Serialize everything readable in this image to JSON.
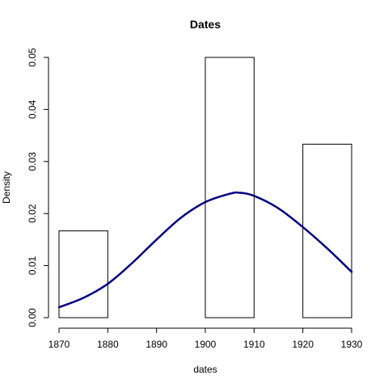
{
  "chart_data": {
    "type": "bar",
    "title": "Dates",
    "xlabel": "dates",
    "ylabel": "Density",
    "xlim": [
      1870,
      1930
    ],
    "ylim": [
      0,
      0.05
    ],
    "x_ticks": [
      "1870",
      "1880",
      "1890",
      "1900",
      "1910",
      "1920",
      "1930"
    ],
    "y_ticks": [
      "0.00",
      "0.01",
      "0.02",
      "0.03",
      "0.04",
      "0.05"
    ],
    "bins": [
      {
        "from": 1870,
        "to": 1880,
        "density": 0.01667
      },
      {
        "from": 1880,
        "to": 1890,
        "density": 0
      },
      {
        "from": 1890,
        "to": 1900,
        "density": 0
      },
      {
        "from": 1900,
        "to": 1910,
        "density": 0.05
      },
      {
        "from": 1910,
        "to": 1920,
        "density": 0
      },
      {
        "from": 1920,
        "to": 1930,
        "density": 0.03333
      }
    ],
    "series": [
      {
        "type": "line",
        "color": "#000080",
        "x": [
          1870,
          1875,
          1880,
          1885,
          1890,
          1895,
          1900,
          1905,
          1907,
          1910,
          1915,
          1920,
          1925,
          1930
        ],
        "y": [
          0.002,
          0.0038,
          0.0065,
          0.0105,
          0.015,
          0.0192,
          0.0222,
          0.0238,
          0.024,
          0.0234,
          0.021,
          0.0174,
          0.0133,
          0.0088
        ]
      }
    ],
    "grid": false
  }
}
